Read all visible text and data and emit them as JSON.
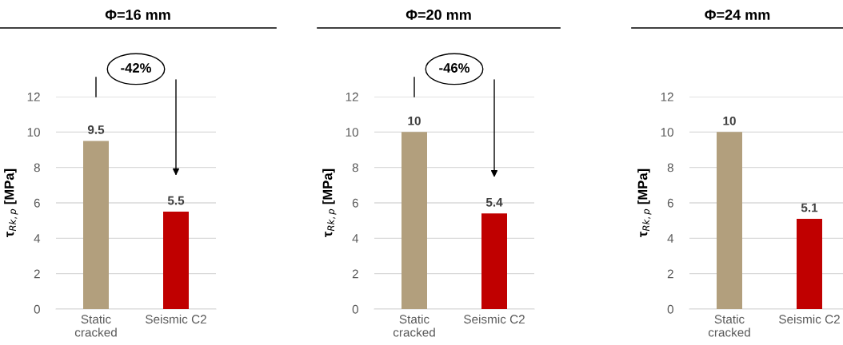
{
  "chart_data": [
    {
      "type": "bar",
      "title": "Φ=16 mm",
      "ylabel": "τ$_{Rk,p}$ [MPa]",
      "categories": [
        "Static\ncracked",
        "Seismic C2"
      ],
      "values": [
        9.5,
        5.5
      ],
      "colors": [
        "#b29f7d",
        "#c00000"
      ],
      "ylim": [
        0,
        12
      ],
      "yticks": [
        0,
        2,
        4,
        6,
        8,
        10,
        12
      ],
      "grid": "y",
      "data_labels": true,
      "annotations": [
        "-42%"
      ]
    },
    {
      "type": "bar",
      "title": "Φ=20 mm",
      "ylabel": "τ$_{Rk,p}$ [MPa]",
      "categories": [
        "Static\ncracked",
        "Seismic C2"
      ],
      "values": [
        10,
        5.4
      ],
      "colors": [
        "#b29f7d",
        "#c00000"
      ],
      "ylim": [
        0,
        12
      ],
      "yticks": [
        0,
        2,
        4,
        6,
        8,
        10,
        12
      ],
      "grid": "y",
      "data_labels": true,
      "annotations": [
        "-46%"
      ]
    },
    {
      "type": "bar",
      "title": "Φ=24 mm",
      "ylabel": "τ$_{Rk,p}$ [MPa]",
      "categories": [
        "Static\ncracked",
        "Seismic C2"
      ],
      "values": [
        10,
        5.1
      ],
      "colors": [
        "#b29f7d",
        "#c00000"
      ],
      "ylim": [
        0,
        12
      ],
      "yticks": [
        0,
        2,
        4,
        6,
        8,
        10,
        12
      ],
      "grid": "y",
      "data_labels": true
    }
  ]
}
